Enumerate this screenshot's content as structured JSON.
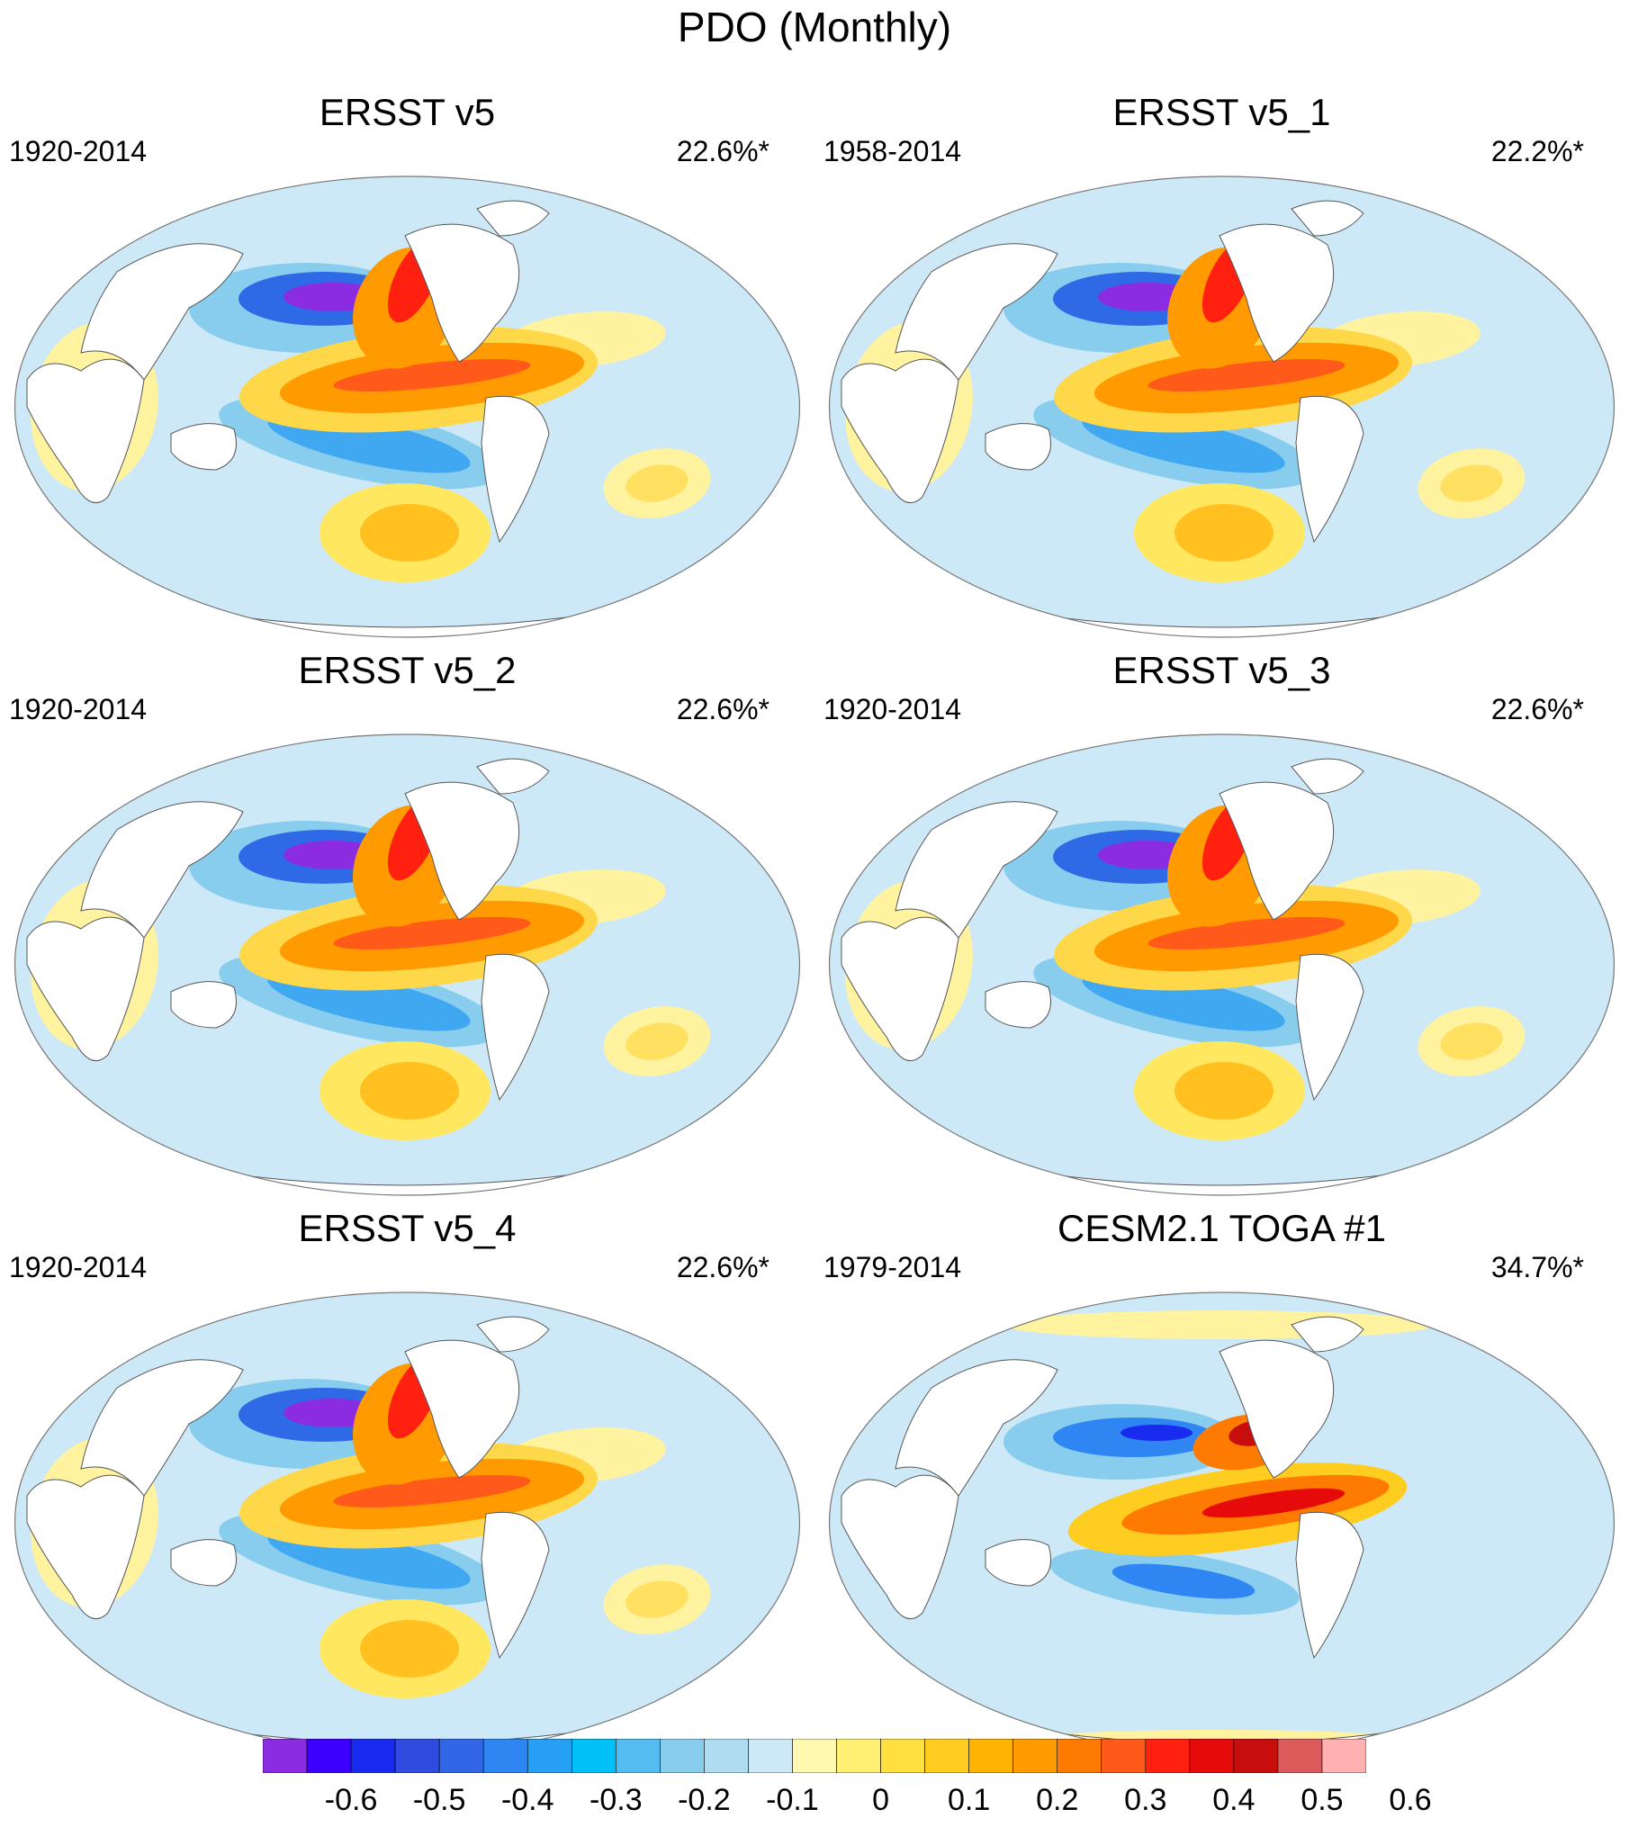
{
  "figure": {
    "title": "PDO (Monthly)"
  },
  "panels": [
    {
      "title": "ERSST v5",
      "years": "1920-2014",
      "percent": "22.6%*",
      "pattern": "obs"
    },
    {
      "title": "ERSST v5_1",
      "years": "1958-2014",
      "percent": "22.2%*",
      "pattern": "obs"
    },
    {
      "title": "ERSST v5_2",
      "years": "1920-2014",
      "percent": "22.6%*",
      "pattern": "obs"
    },
    {
      "title": "ERSST v5_3",
      "years": "1920-2014",
      "percent": "22.6%*",
      "pattern": "obs"
    },
    {
      "title": "ERSST v5_4",
      "years": "1920-2014",
      "percent": "22.6%*",
      "pattern": "obs"
    },
    {
      "title": "CESM2.1 TOGA #1",
      "years": "1979-2014",
      "percent": "34.7%*",
      "pattern": "model"
    }
  ],
  "colorbar": {
    "colors": [
      "#8b2be2",
      "#3c00ff",
      "#1a2bf0",
      "#2f4be0",
      "#3266e6",
      "#2f86f2",
      "#25a0f5",
      "#00c0f8",
      "#55bcf0",
      "#88cdee",
      "#b0dcf2",
      "#cde9f7",
      "#fff9b0",
      "#ffef73",
      "#ffe040",
      "#ffcc20",
      "#ffb300",
      "#ff9a00",
      "#ff7a00",
      "#ff5a1a",
      "#ff2010",
      "#e60a0a",
      "#c80d0d",
      "#dd5a5a",
      "#ffb0b0"
    ],
    "tick_labels": [
      "-0.6",
      "-0.5",
      "-0.4",
      "-0.3",
      "-0.2",
      "-0.1",
      "0",
      "0.1",
      "0.2",
      "0.3",
      "0.4",
      "0.5",
      "0.6"
    ]
  }
}
